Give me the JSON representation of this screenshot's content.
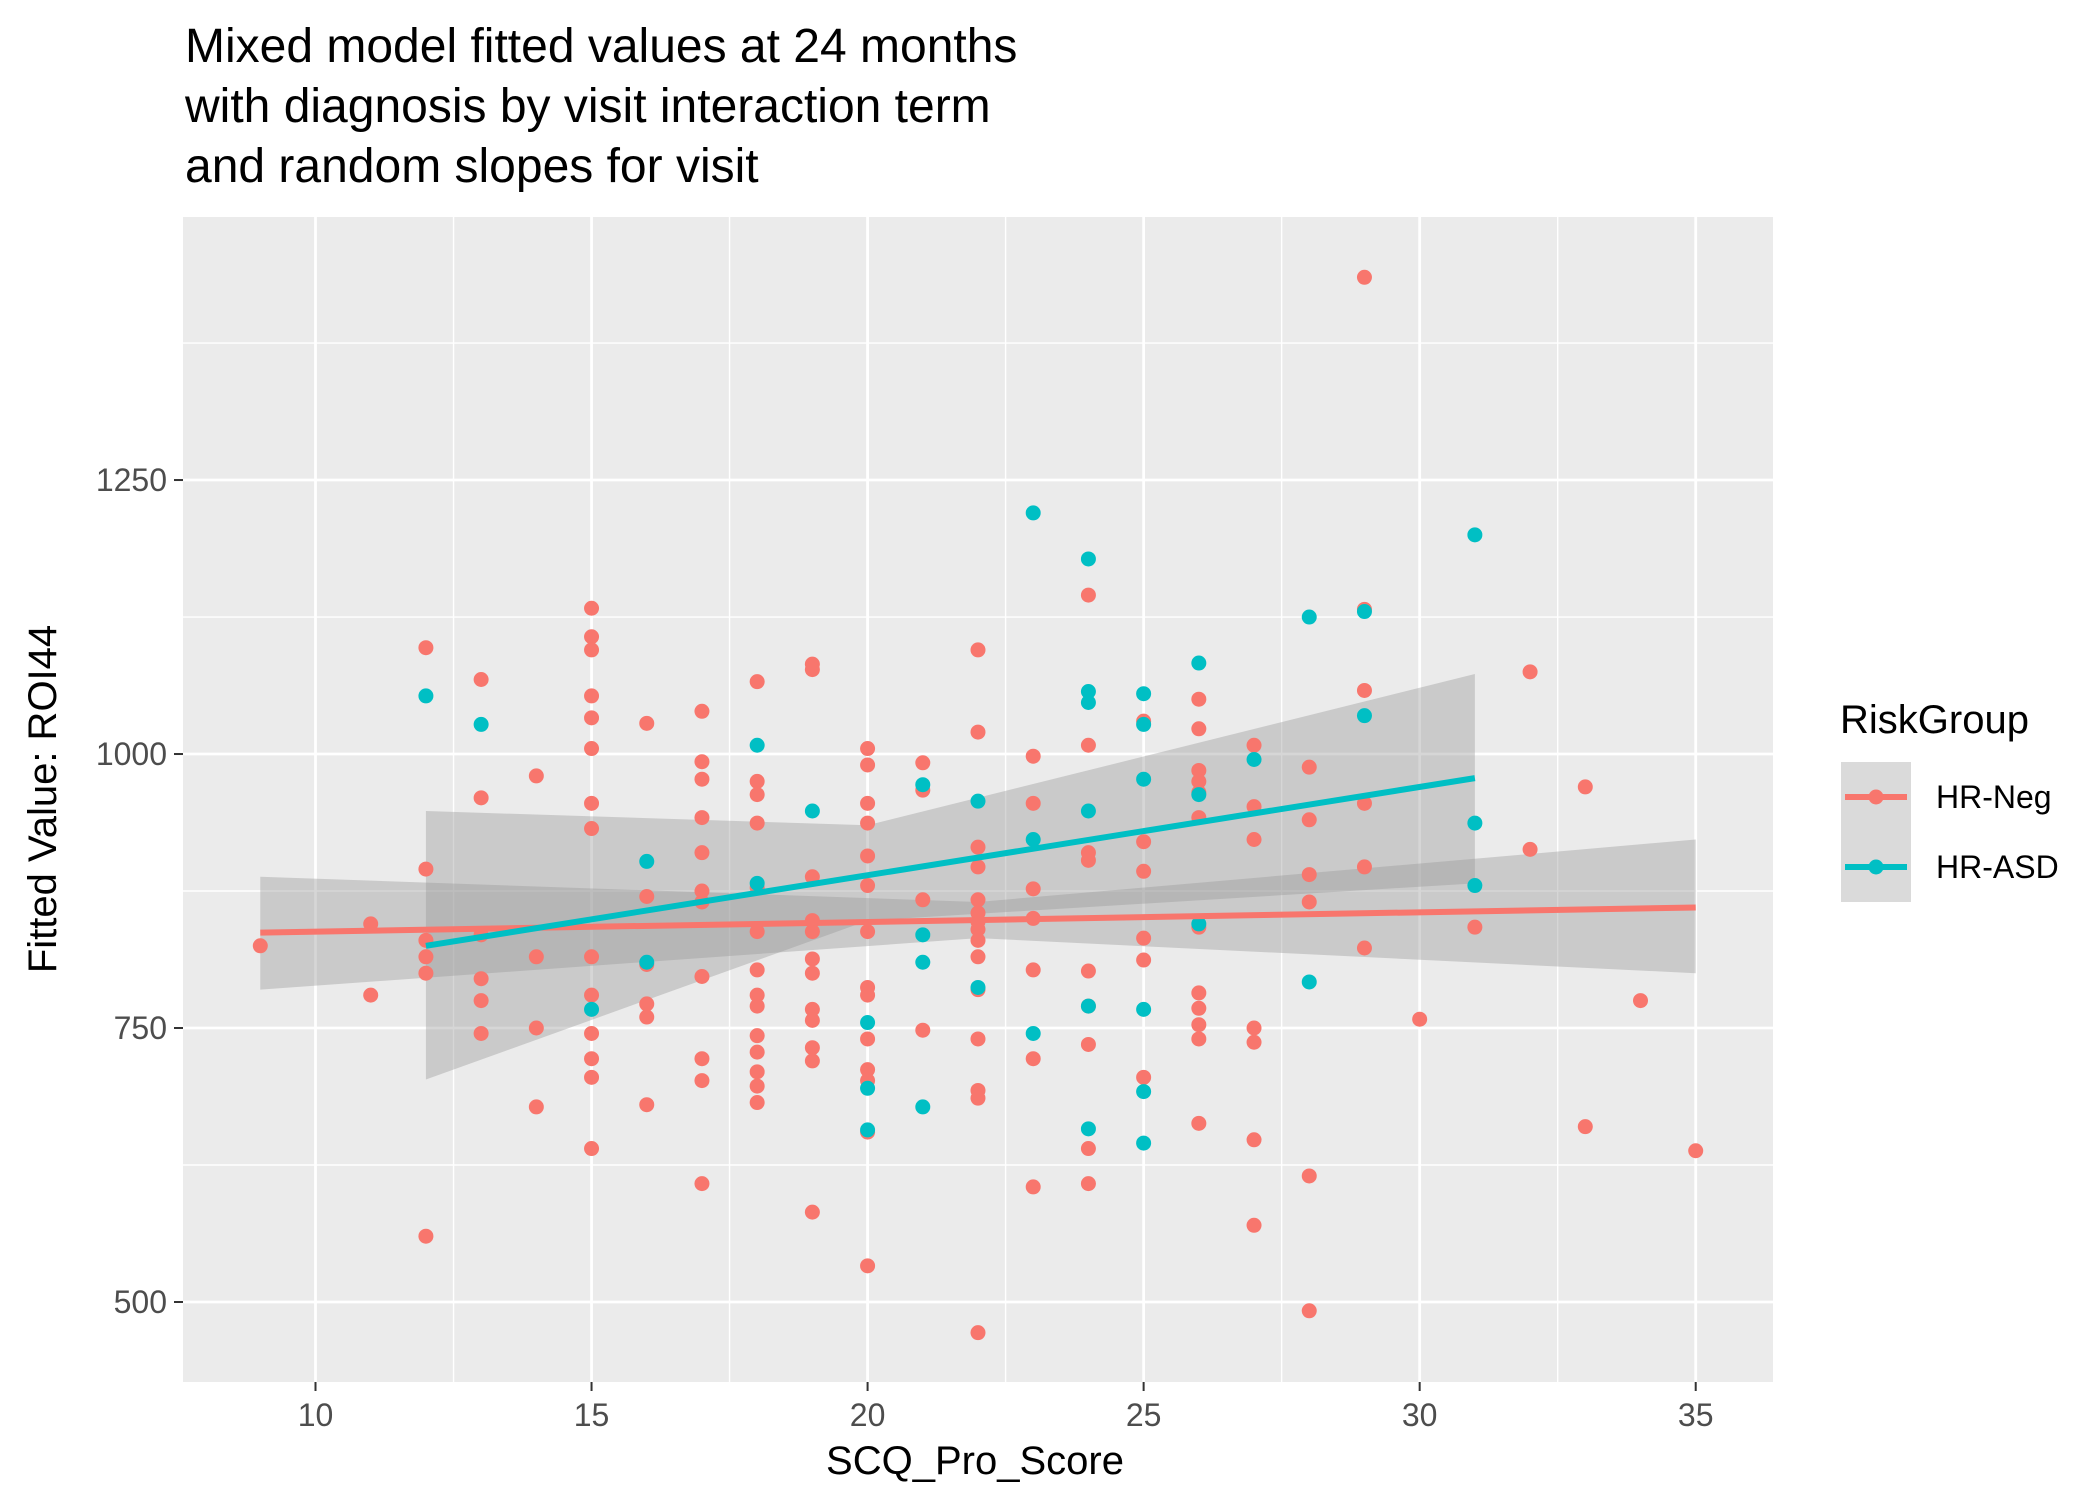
{
  "chart_data": {
    "type": "scatter",
    "title_lines": [
      "Mixed model fitted values at 24 months",
      "with diagnosis by visit interaction term",
      "and random slopes for visit"
    ],
    "xlabel": "SCQ_Pro_Score",
    "ylabel": "Fitted Value: ROI44",
    "xlim": [
      7.6,
      36.4
    ],
    "ylim": [
      427,
      1490
    ],
    "x_ticks": [
      10,
      15,
      20,
      25,
      30,
      35
    ],
    "x_tick_labels": [
      "10",
      "15",
      "20",
      "25",
      "30",
      "35"
    ],
    "x_minor_ticks": [
      12.5,
      17.5,
      22.5,
      27.5,
      32.5
    ],
    "y_ticks": [
      500,
      750,
      1000,
      1250
    ],
    "y_tick_labels": [
      "500",
      "750",
      "1000",
      "1250"
    ],
    "y_minor_ticks": [
      625,
      875,
      1125,
      1375
    ],
    "grid": true,
    "panel_background": "#ebebeb",
    "grid_color": "#ffffff",
    "ribbon_color": "#999999",
    "legend": {
      "title": "RiskGroup",
      "position": "right",
      "entries": [
        "HR-Neg",
        "HR-ASD"
      ]
    },
    "series": [
      {
        "name": "HR-Neg",
        "color": "#F8766D",
        "points": [
          [
            9,
            825
          ],
          [
            11,
            845
          ],
          [
            11,
            780
          ],
          [
            12,
            1097
          ],
          [
            12,
            895
          ],
          [
            12,
            830
          ],
          [
            12,
            815
          ],
          [
            12,
            800
          ],
          [
            12,
            560
          ],
          [
            13,
            1068
          ],
          [
            13,
            960
          ],
          [
            13,
            835
          ],
          [
            13,
            795
          ],
          [
            13,
            775
          ],
          [
            13,
            745
          ],
          [
            14,
            980
          ],
          [
            14,
            815
          ],
          [
            14,
            750
          ],
          [
            14,
            678
          ],
          [
            15,
            1133
          ],
          [
            15,
            1107
          ],
          [
            15,
            1095
          ],
          [
            15,
            1053
          ],
          [
            15,
            1033
          ],
          [
            15,
            1005
          ],
          [
            15,
            955
          ],
          [
            15,
            932
          ],
          [
            15,
            815
          ],
          [
            15,
            780
          ],
          [
            15,
            745
          ],
          [
            15,
            722
          ],
          [
            15,
            705
          ],
          [
            15,
            640
          ],
          [
            16,
            1028
          ],
          [
            16,
            870
          ],
          [
            16,
            808
          ],
          [
            16,
            772
          ],
          [
            16,
            760
          ],
          [
            16,
            680
          ],
          [
            17,
            1039
          ],
          [
            17,
            993
          ],
          [
            17,
            977
          ],
          [
            17,
            942
          ],
          [
            17,
            910
          ],
          [
            17,
            875
          ],
          [
            17,
            865
          ],
          [
            17,
            797
          ],
          [
            17,
            722
          ],
          [
            17,
            702
          ],
          [
            17,
            608
          ],
          [
            18,
            1066
          ],
          [
            18,
            975
          ],
          [
            18,
            963
          ],
          [
            18,
            937
          ],
          [
            18,
            878
          ],
          [
            18,
            838
          ],
          [
            18,
            803
          ],
          [
            18,
            780
          ],
          [
            18,
            770
          ],
          [
            18,
            743
          ],
          [
            18,
            728
          ],
          [
            18,
            710
          ],
          [
            18,
            697
          ],
          [
            18,
            682
          ],
          [
            19,
            1082
          ],
          [
            19,
            1077
          ],
          [
            19,
            888
          ],
          [
            19,
            848
          ],
          [
            19,
            838
          ],
          [
            19,
            813
          ],
          [
            19,
            800
          ],
          [
            19,
            767
          ],
          [
            19,
            757
          ],
          [
            19,
            732
          ],
          [
            19,
            720
          ],
          [
            19,
            582
          ],
          [
            20,
            1005
          ],
          [
            20,
            990
          ],
          [
            20,
            955
          ],
          [
            20,
            937
          ],
          [
            20,
            907
          ],
          [
            20,
            880
          ],
          [
            20,
            838
          ],
          [
            20,
            787
          ],
          [
            20,
            780
          ],
          [
            20,
            740
          ],
          [
            20,
            712
          ],
          [
            20,
            702
          ],
          [
            20,
            655
          ],
          [
            20,
            533
          ],
          [
            21,
            992
          ],
          [
            21,
            967
          ],
          [
            21,
            867
          ],
          [
            21,
            748
          ],
          [
            22,
            1095
          ],
          [
            22,
            1020
          ],
          [
            22,
            915
          ],
          [
            22,
            897
          ],
          [
            22,
            867
          ],
          [
            22,
            855
          ],
          [
            22,
            847
          ],
          [
            22,
            840
          ],
          [
            22,
            830
          ],
          [
            22,
            815
          ],
          [
            22,
            785
          ],
          [
            22,
            740
          ],
          [
            22,
            693
          ],
          [
            22,
            686
          ],
          [
            22,
            472
          ],
          [
            23,
            998
          ],
          [
            23,
            955
          ],
          [
            23,
            877
          ],
          [
            23,
            850
          ],
          [
            23,
            803
          ],
          [
            23,
            722
          ],
          [
            23,
            605
          ],
          [
            24,
            1145
          ],
          [
            24,
            1008
          ],
          [
            24,
            910
          ],
          [
            24,
            903
          ],
          [
            24,
            802
          ],
          [
            24,
            770
          ],
          [
            24,
            735
          ],
          [
            24,
            640
          ],
          [
            24,
            608
          ],
          [
            25,
            1030
          ],
          [
            25,
            920
          ],
          [
            25,
            893
          ],
          [
            25,
            832
          ],
          [
            25,
            812
          ],
          [
            25,
            705
          ],
          [
            26,
            1050
          ],
          [
            26,
            1023
          ],
          [
            26,
            985
          ],
          [
            26,
            975
          ],
          [
            26,
            965
          ],
          [
            26,
            942
          ],
          [
            26,
            842
          ],
          [
            26,
            782
          ],
          [
            26,
            768
          ],
          [
            26,
            753
          ],
          [
            26,
            740
          ],
          [
            26,
            663
          ],
          [
            27,
            1008
          ],
          [
            27,
            952
          ],
          [
            27,
            922
          ],
          [
            27,
            750
          ],
          [
            27,
            737
          ],
          [
            27,
            648
          ],
          [
            27,
            570
          ],
          [
            28,
            988
          ],
          [
            28,
            940
          ],
          [
            28,
            890
          ],
          [
            28,
            865
          ],
          [
            28,
            615
          ],
          [
            28,
            492
          ],
          [
            29,
            1435
          ],
          [
            29,
            1132
          ],
          [
            29,
            1058
          ],
          [
            29,
            955
          ],
          [
            29,
            897
          ],
          [
            29,
            823
          ],
          [
            30,
            758
          ],
          [
            31,
            842
          ],
          [
            32,
            1075
          ],
          [
            32,
            913
          ],
          [
            33,
            970
          ],
          [
            33,
            660
          ],
          [
            34,
            775
          ],
          [
            35,
            638
          ]
        ],
        "fit": {
          "x": [
            9,
            35
          ],
          "y": [
            837,
            860
          ]
        },
        "ribbon": {
          "x": [
            9,
            22,
            35
          ],
          "upper": [
            888,
            865,
            922
          ],
          "lower": [
            785,
            832,
            800
          ]
        }
      },
      {
        "name": "HR-ASD",
        "color": "#00BFC4",
        "points": [
          [
            12,
            1053
          ],
          [
            13,
            1027
          ],
          [
            15,
            767
          ],
          [
            16,
            902
          ],
          [
            16,
            810
          ],
          [
            18,
            1008
          ],
          [
            18,
            882
          ],
          [
            19,
            948
          ],
          [
            20,
            755
          ],
          [
            20,
            695
          ],
          [
            20,
            657
          ],
          [
            21,
            972
          ],
          [
            21,
            835
          ],
          [
            21,
            810
          ],
          [
            21,
            678
          ],
          [
            22,
            957
          ],
          [
            22,
            787
          ],
          [
            23,
            1220
          ],
          [
            23,
            922
          ],
          [
            23,
            745
          ],
          [
            24,
            1178
          ],
          [
            24,
            1057
          ],
          [
            24,
            1047
          ],
          [
            24,
            948
          ],
          [
            24,
            770
          ],
          [
            24,
            658
          ],
          [
            25,
            1055
          ],
          [
            25,
            1027
          ],
          [
            25,
            977
          ],
          [
            25,
            767
          ],
          [
            25,
            692
          ],
          [
            25,
            645
          ],
          [
            26,
            1083
          ],
          [
            26,
            963
          ],
          [
            26,
            845
          ],
          [
            27,
            995
          ],
          [
            28,
            1125
          ],
          [
            28,
            792
          ],
          [
            29,
            1130
          ],
          [
            29,
            1035
          ],
          [
            31,
            1200
          ],
          [
            31,
            937
          ],
          [
            31,
            880
          ]
        ],
        "fit": {
          "x": [
            12,
            31
          ],
          "y": [
            825,
            978
          ]
        },
        "ribbon": {
          "x": [
            12,
            20,
            31
          ],
          "upper": [
            948,
            935,
            1073
          ],
          "lower": [
            703,
            848,
            882
          ]
        }
      }
    ]
  }
}
